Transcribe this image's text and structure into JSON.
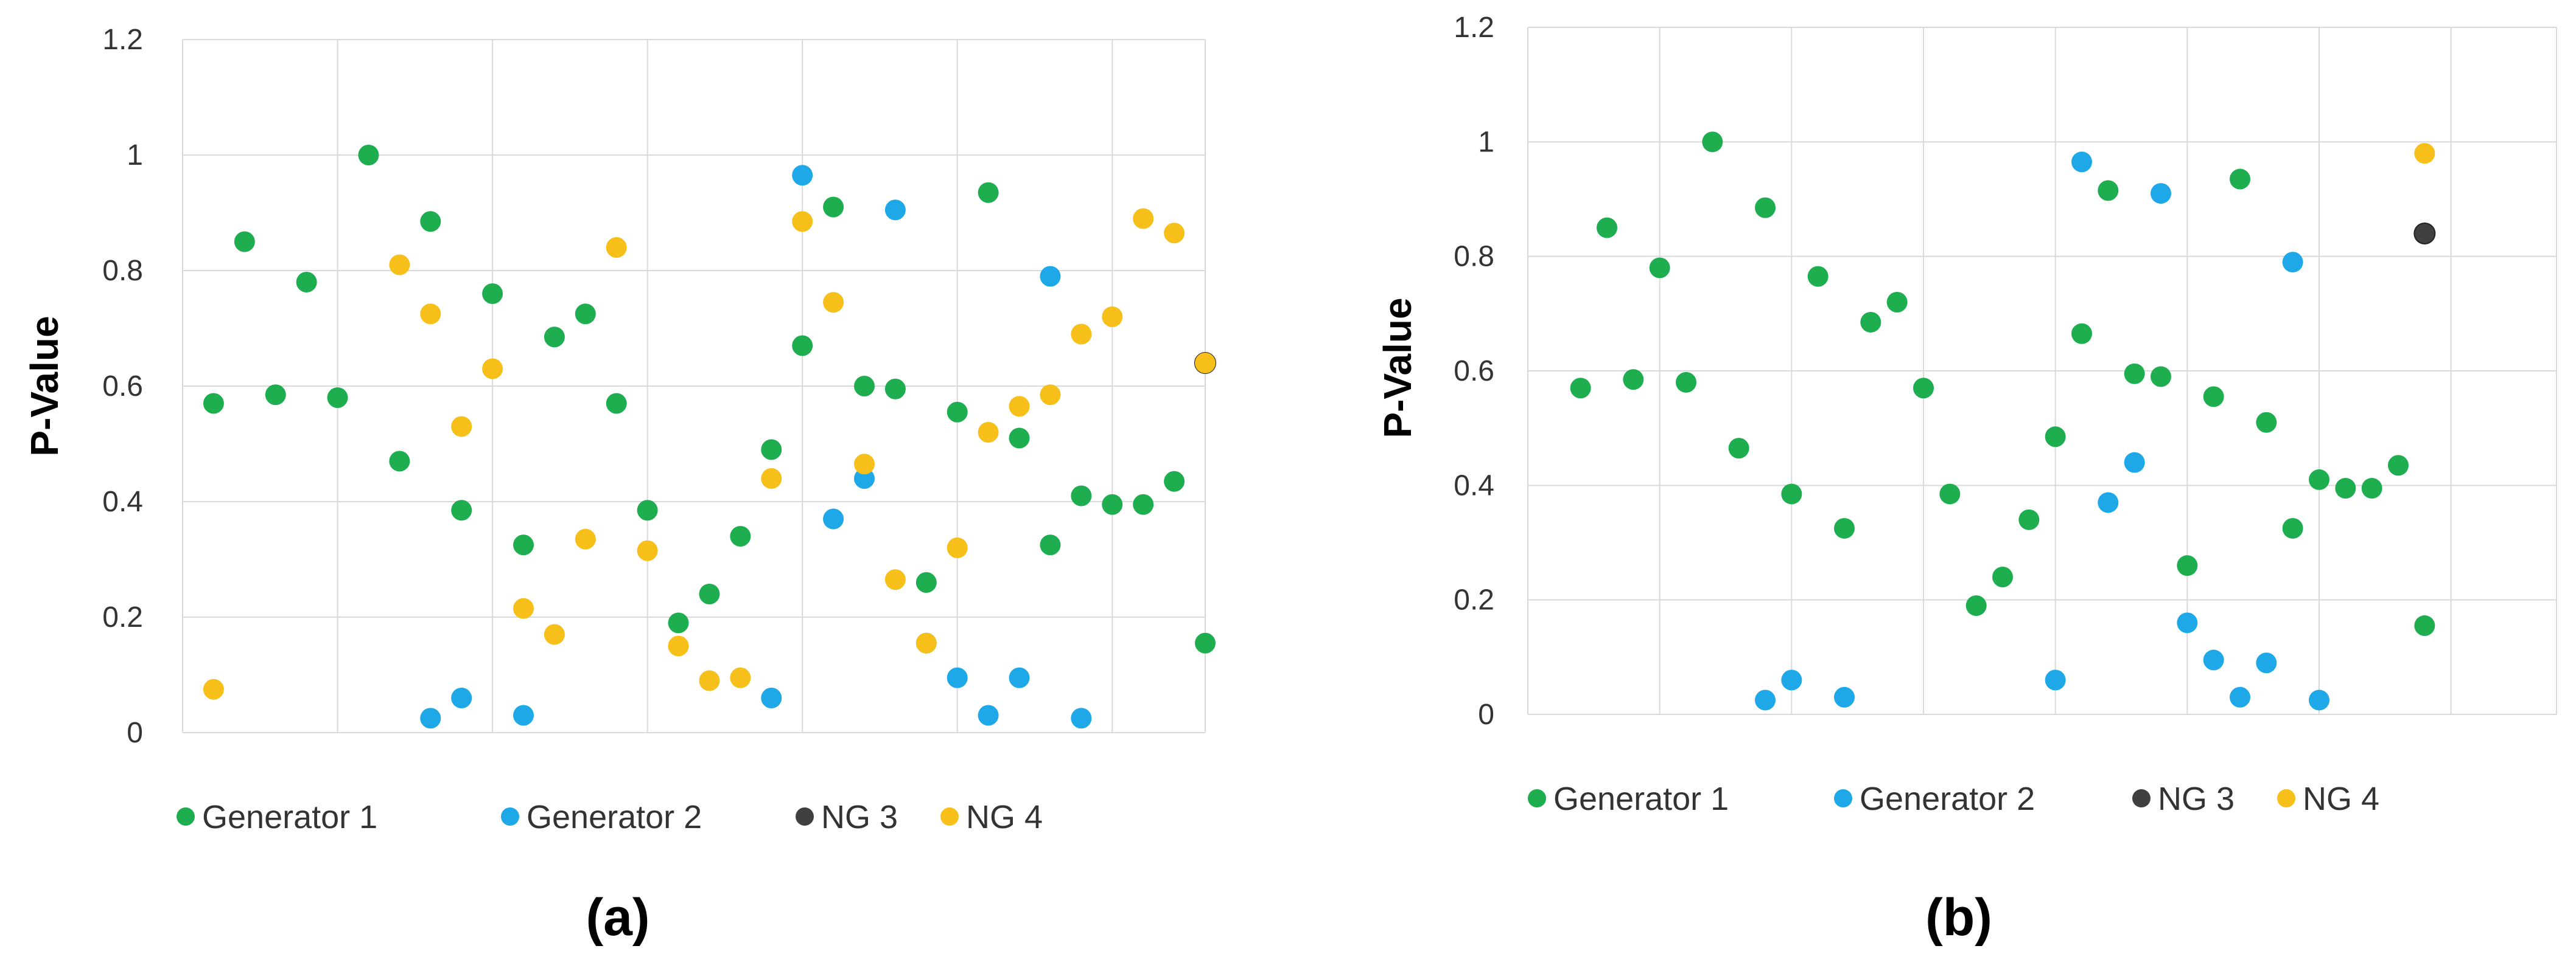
{
  "colors": {
    "Generator 1": "#1fae4f",
    "Generator 2": "#1ea8e8",
    "NG 3": "#404040",
    "NG 4": "#f7bf1a",
    "grid": "#d9d9d9"
  },
  "chart_data": [
    {
      "type": "scatter",
      "panel_label": "(a)",
      "ylabel": "P-Value",
      "xlabel": "",
      "ylim": [
        0,
        1.2
      ],
      "yticks": [
        "0",
        "0.2",
        "0.4",
        "0.6",
        "0.8",
        "1",
        "1.2"
      ],
      "xlim": [
        0,
        33
      ],
      "x_grid_step": 5,
      "legend": [
        "Generator 1",
        "Generator 2",
        "NG 3",
        "NG 4"
      ],
      "series": [
        {
          "name": "Generator 1",
          "points": [
            [
              1,
              0.57
            ],
            [
              2,
              0.85
            ],
            [
              3,
              0.585
            ],
            [
              4,
              0.78
            ],
            [
              5,
              0.58
            ],
            [
              6,
              1.0
            ],
            [
              7,
              0.47
            ],
            [
              8,
              0.885
            ],
            [
              9,
              0.385
            ],
            [
              10,
              0.76
            ],
            [
              11,
              0.325
            ],
            [
              12,
              0.685
            ],
            [
              13,
              0.725
            ],
            [
              14,
              0.57
            ],
            [
              15,
              0.385
            ],
            [
              16,
              0.19
            ],
            [
              17,
              0.24
            ],
            [
              18,
              0.34
            ],
            [
              19,
              0.49
            ],
            [
              20,
              0.67
            ],
            [
              21,
              0.91
            ],
            [
              22,
              0.6
            ],
            [
              23,
              0.595
            ],
            [
              24,
              0.26
            ],
            [
              25,
              0.555
            ],
            [
              26,
              0.935
            ],
            [
              27,
              0.51
            ],
            [
              28,
              0.325
            ],
            [
              29,
              0.41
            ],
            [
              30,
              0.395
            ],
            [
              31,
              0.395
            ],
            [
              32,
              0.435
            ],
            [
              33,
              0.155
            ]
          ]
        },
        {
          "name": "Generator 2",
          "points": [
            [
              8,
              0.025
            ],
            [
              9,
              0.06
            ],
            [
              11,
              0.03
            ],
            [
              19,
              0.06
            ],
            [
              20,
              0.965
            ],
            [
              21,
              0.37
            ],
            [
              22,
              0.44
            ],
            [
              23,
              0.905
            ],
            [
              24,
              0.155
            ],
            [
              25,
              0.095
            ],
            [
              26,
              0.03
            ],
            [
              27,
              0.095
            ],
            [
              28,
              0.79
            ],
            [
              29,
              0.025
            ]
          ]
        },
        {
          "name": "NG 3",
          "points": [
            [
              33,
              0.64
            ]
          ]
        },
        {
          "name": "NG 4",
          "points": [
            [
              1,
              0.075
            ],
            [
              7,
              0.81
            ],
            [
              8,
              0.725
            ],
            [
              9,
              0.53
            ],
            [
              10,
              0.63
            ],
            [
              11,
              0.215
            ],
            [
              12,
              0.17
            ],
            [
              13,
              0.335
            ],
            [
              14,
              0.84
            ],
            [
              15,
              0.315
            ],
            [
              16,
              0.15
            ],
            [
              17,
              0.09
            ],
            [
              18,
              0.095
            ],
            [
              19,
              0.44
            ],
            [
              20,
              0.885
            ],
            [
              21,
              0.745
            ],
            [
              22,
              0.465
            ],
            [
              23,
              0.265
            ],
            [
              24,
              0.155
            ],
            [
              25,
              0.32
            ],
            [
              26,
              0.52
            ],
            [
              27,
              0.565
            ],
            [
              28,
              0.585
            ],
            [
              29,
              0.69
            ],
            [
              30,
              0.72
            ],
            [
              31,
              0.89
            ],
            [
              32,
              0.865
            ],
            [
              33,
              0.64
            ]
          ]
        }
      ]
    },
    {
      "type": "scatter",
      "panel_label": "(b)",
      "ylabel": "P-Value",
      "xlabel": "",
      "ylim": [
        0,
        1.2
      ],
      "yticks": [
        "0",
        "0.2",
        "0.4",
        "0.6",
        "0.8",
        "1",
        "1.2"
      ],
      "xlim": [
        0,
        39
      ],
      "x_grid_step": 5,
      "legend": [
        "Generator 1",
        "Generator 2",
        "NG 3",
        "NG 4"
      ],
      "series": [
        {
          "name": "Generator 1",
          "points": [
            [
              2,
              0.57
            ],
            [
              3,
              0.85
            ],
            [
              4,
              0.585
            ],
            [
              5,
              0.78
            ],
            [
              6,
              0.58
            ],
            [
              7,
              1.0
            ],
            [
              8,
              0.465
            ],
            [
              9,
              0.885
            ],
            [
              10,
              0.385
            ],
            [
              11,
              0.765
            ],
            [
              12,
              0.325
            ],
            [
              13,
              0.685
            ],
            [
              14,
              0.72
            ],
            [
              15,
              0.57
            ],
            [
              16,
              0.385
            ],
            [
              17,
              0.19
            ],
            [
              18,
              0.24
            ],
            [
              19,
              0.34
            ],
            [
              20,
              0.485
            ],
            [
              21,
              0.665
            ],
            [
              22,
              0.915
            ],
            [
              23,
              0.595
            ],
            [
              24,
              0.59
            ],
            [
              25,
              0.26
            ],
            [
              26,
              0.555
            ],
            [
              27,
              0.935
            ],
            [
              28,
              0.51
            ],
            [
              29,
              0.325
            ],
            [
              30,
              0.41
            ],
            [
              31,
              0.395
            ],
            [
              32,
              0.395
            ],
            [
              33,
              0.435
            ],
            [
              34,
              0.155
            ]
          ]
        },
        {
          "name": "Generator 2",
          "points": [
            [
              9,
              0.025
            ],
            [
              10,
              0.06
            ],
            [
              12,
              0.03
            ],
            [
              20,
              0.06
            ],
            [
              21,
              0.965
            ],
            [
              22,
              0.37
            ],
            [
              23,
              0.44
            ],
            [
              24,
              0.91
            ],
            [
              25,
              0.16
            ],
            [
              26,
              0.095
            ],
            [
              27,
              0.03
            ],
            [
              28,
              0.09
            ],
            [
              29,
              0.79
            ],
            [
              30,
              0.025
            ]
          ]
        },
        {
          "name": "NG 3",
          "points": [
            [
              34,
              0.84
            ]
          ]
        },
        {
          "name": "NG 4",
          "points": [
            [
              34,
              0.98
            ]
          ]
        }
      ]
    }
  ]
}
